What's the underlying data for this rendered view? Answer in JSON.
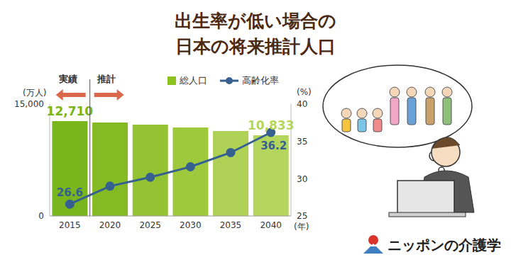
{
  "chart_data": {
    "type": "bar",
    "title": "出生率が低い場合の\n日本の将来推計人口",
    "categories": [
      "2015",
      "2020",
      "2025",
      "2030",
      "2035",
      "2040"
    ],
    "x_label": "(年)",
    "y_label": "(万人)",
    "y2_label": "(%)",
    "annotations": [
      "実績",
      "推計"
    ],
    "series": [
      {
        "name": "総人口",
        "type": "bar",
        "color": "#8dc21f",
        "colors": [
          "#79b51c",
          "#84bb24",
          "#93c332",
          "#9fc93c",
          "#aed156",
          "#b5d65e"
        ],
        "values": [
          12710,
          12530,
          12240,
          11860,
          11390,
          10833
        ],
        "value_labels": [
          "12,710",
          null,
          null,
          null,
          null,
          "10,833"
        ]
      },
      {
        "name": "高齢化率",
        "type": "line",
        "axis": "y2",
        "color": "#35608f",
        "marker": "circle",
        "values": [
          26.6,
          29.0,
          30.2,
          31.6,
          33.5,
          36.2
        ],
        "value_labels": [
          "26.6",
          null,
          null,
          null,
          null,
          "36.2"
        ]
      }
    ],
    "ylim": [
      0,
      15000
    ],
    "yticks": [
      0,
      {
        "value": 15000,
        "label": "15,000"
      }
    ],
    "y2lim": [
      25,
      40
    ],
    "y2ticks": [
      25,
      30,
      35,
      40
    ],
    "data_labels": true,
    "legend": "top right",
    "grid": false,
    "logo": "ニッポンの介護学"
  }
}
